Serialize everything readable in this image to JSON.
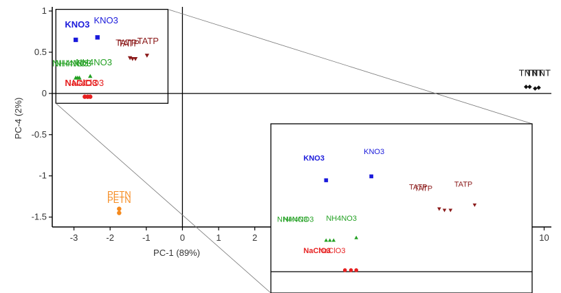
{
  "chart_data": {
    "type": "scatter",
    "title": "",
    "xlabel": "PC-1 (89%)",
    "ylabel": "PC-4 (2%)",
    "xlim": [
      -3.6,
      10.2
    ],
    "ylim": [
      -1.62,
      1.05
    ],
    "xticks": [
      -3,
      -2,
      -1,
      0,
      1,
      2,
      10
    ],
    "yticks": [
      1,
      0.5,
      0,
      -0.5,
      -1,
      -1.5
    ],
    "ytick_labels": [
      "1",
      "0.5",
      "0",
      "-0.5",
      "-1",
      "-1.5"
    ],
    "grid": false,
    "colors": {
      "KNO3": "#1a1adb",
      "TATP": "#8b1a1a",
      "NH4NO3": "#22a022",
      "NaClO3": "#e62020",
      "TNT": "#111111",
      "PETN": "#f58a1e"
    },
    "series": [
      {
        "name": "KNO3",
        "marker": "square",
        "points": [
          {
            "x": -2.95,
            "y": 0.65
          },
          {
            "x": -2.35,
            "y": 0.68
          }
        ],
        "labels": [
          {
            "text": "KNO3",
            "x": -3.25,
            "y": 0.8,
            "bold": true
          },
          {
            "text": "KNO3",
            "x": -2.45,
            "y": 0.85,
            "bold": false
          }
        ]
      },
      {
        "name": "TATP",
        "marker": "triangle-down",
        "points": [
          {
            "x": -1.45,
            "y": 0.43
          },
          {
            "x": -1.38,
            "y": 0.42
          },
          {
            "x": -1.3,
            "y": 0.42
          },
          {
            "x": -0.98,
            "y": 0.46
          }
        ],
        "labels": [
          {
            "text": "TATP",
            "x": -1.85,
            "y": 0.58,
            "bold": false
          },
          {
            "text": "TATP",
            "x": -1.78,
            "y": 0.57,
            "bold": false
          },
          {
            "text": "TATP",
            "x": -1.25,
            "y": 0.6,
            "bold": false
          }
        ]
      },
      {
        "name": "NH4NO3",
        "marker": "triangle-up",
        "points": [
          {
            "x": -2.95,
            "y": 0.19
          },
          {
            "x": -2.9,
            "y": 0.19
          },
          {
            "x": -2.85,
            "y": 0.19
          },
          {
            "x": -2.55,
            "y": 0.21
          }
        ],
        "labels": [
          {
            "text": "NH4NO3",
            "x": -3.6,
            "y": 0.33,
            "bold": false
          },
          {
            "text": "NH4NO3",
            "x": -3.52,
            "y": 0.33,
            "bold": false
          },
          {
            "text": "NH4NO3",
            "x": -2.95,
            "y": 0.34,
            "bold": false
          }
        ]
      },
      {
        "name": "NaClO3",
        "marker": "circle",
        "points": [
          {
            "x": -2.7,
            "y": -0.04
          },
          {
            "x": -2.62,
            "y": -0.04
          },
          {
            "x": -2.55,
            "y": -0.04
          }
        ],
        "labels": [
          {
            "text": "NaClO3",
            "x": -3.25,
            "y": 0.09,
            "bold": true
          },
          {
            "text": "NaClO3",
            "x": -3.05,
            "y": 0.09,
            "bold": false
          }
        ]
      },
      {
        "name": "TNT",
        "marker": "diamond",
        "points": [
          {
            "x": 9.5,
            "y": 0.08
          },
          {
            "x": 9.6,
            "y": 0.08
          },
          {
            "x": 9.75,
            "y": 0.06
          },
          {
            "x": 9.85,
            "y": 0.07
          }
        ],
        "labels": [
          {
            "text": "TNT",
            "x": 9.3,
            "y": 0.21,
            "bold": false
          },
          {
            "text": "TNT",
            "x": 9.5,
            "y": 0.21,
            "bold": false
          },
          {
            "text": "TNT",
            "x": 9.7,
            "y": 0.21,
            "bold": false
          }
        ]
      },
      {
        "name": "PETN",
        "marker": "circle",
        "points": [
          {
            "x": -1.75,
            "y": -1.4
          },
          {
            "x": -1.75,
            "y": -1.45
          }
        ],
        "labels": [
          {
            "text": "PETN",
            "x": -1.75,
            "y": -1.33,
            "bold": false
          },
          {
            "text": "PETN",
            "x": -1.75,
            "y": -1.26,
            "bold": false
          }
        ]
      }
    ],
    "inset": {
      "description_label": "zoom of upper-left cluster",
      "labels": [
        {
          "text": "KNO3",
          "series": "KNO3",
          "bold": true
        },
        {
          "text": "KNO3",
          "series": "KNO3",
          "bold": false
        },
        {
          "text": "TATP",
          "series": "TATP",
          "bold": false
        },
        {
          "text": "TATP",
          "series": "TATP",
          "bold": false
        },
        {
          "text": "TATP",
          "series": "TATP",
          "bold": false
        },
        {
          "text": "NH4NO3",
          "series": "NH4NO3",
          "bold": false
        },
        {
          "text": "NH4NO3",
          "series": "NH4NO3",
          "bold": false
        },
        {
          "text": "NH4NO3",
          "series": "NH4NO3",
          "bold": false
        },
        {
          "text": "NaClO3",
          "series": "NaClO3",
          "bold": true
        },
        {
          "text": "NaClO3",
          "series": "NaClO3",
          "bold": false
        }
      ]
    }
  }
}
